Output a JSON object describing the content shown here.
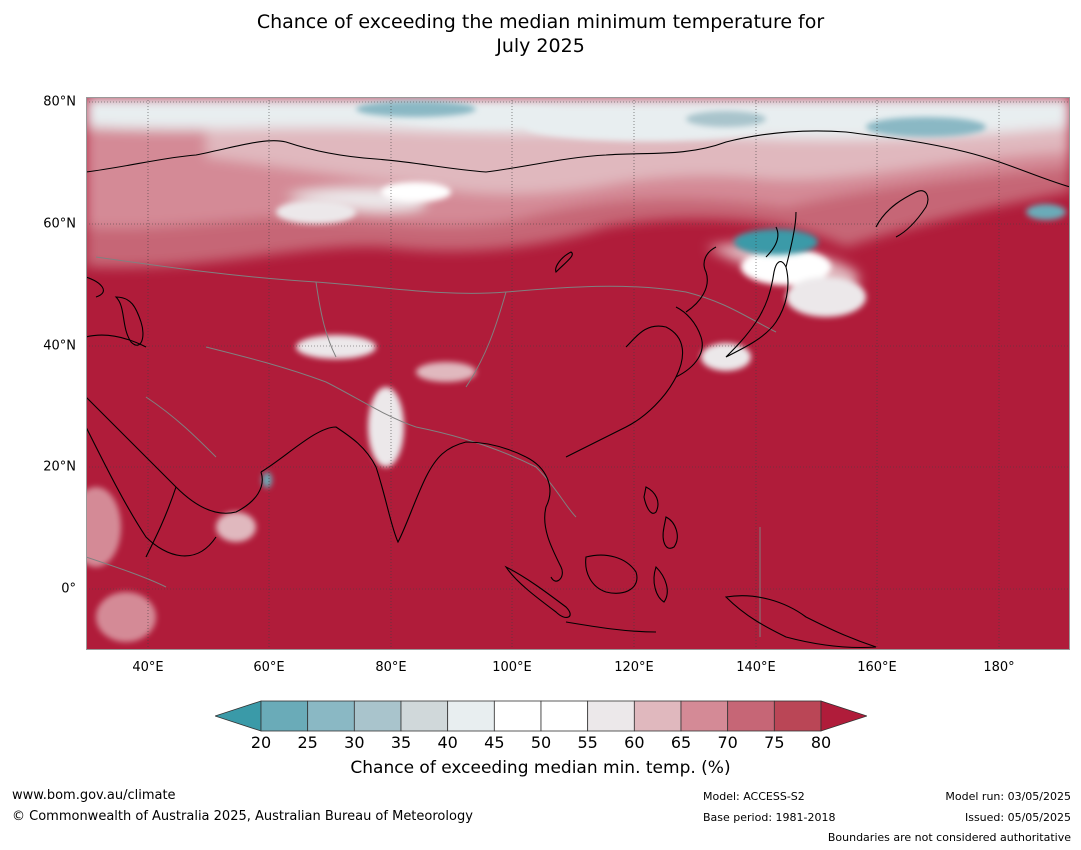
{
  "title": {
    "line1": "Chance of exceeding the median minimum temperature for",
    "line2": "July 2025"
  },
  "map": {
    "lat_labels": [
      "80°N",
      "60°N",
      "40°N",
      "20°N",
      "0°"
    ],
    "lon_labels": [
      "40°E",
      "60°E",
      "80°E",
      "100°E",
      "120°E",
      "140°E",
      "160°E",
      "180°"
    ],
    "colors": {
      "ocean_fill": "#b01c3a",
      "coastline": "#000000",
      "borders": "#808080",
      "gridlines": "#404040"
    }
  },
  "colorbar": {
    "title": "Chance of exceeding median min. temp. (%)",
    "ticks": [
      "20",
      "25",
      "30",
      "35",
      "40",
      "45",
      "50",
      "55",
      "60",
      "65",
      "70",
      "75",
      "80"
    ],
    "below_color": "#3a9aa8",
    "above_color": "#b01c3a",
    "bins": [
      {
        "range": "20-25",
        "color": "#6aabb8"
      },
      {
        "range": "25-30",
        "color": "#8ab8c4"
      },
      {
        "range": "30-35",
        "color": "#a9c4cc"
      },
      {
        "range": "35-40",
        "color": "#d0d8da"
      },
      {
        "range": "40-45",
        "color": "#e8eef0"
      },
      {
        "range": "45-50",
        "color": "#ffffff"
      },
      {
        "range": "50-55",
        "color": "#ffffff"
      },
      {
        "range": "55-60",
        "color": "#ece8ea"
      },
      {
        "range": "60-65",
        "color": "#e0b8be"
      },
      {
        "range": "65-70",
        "color": "#d48a96"
      },
      {
        "range": "70-75",
        "color": "#c66676"
      },
      {
        "range": "75-80",
        "color": "#ba4656"
      }
    ]
  },
  "footer": {
    "url": "www.bom.gov.au/climate",
    "copyright": "© Commonwealth of Australia 2025, Australian Bureau of Meteorology",
    "model": "Model: ACCESS-S2",
    "base_period": "Base period: 1981-2018",
    "model_run": "Model run: 03/05/2025",
    "issued": "Issued: 05/05/2025",
    "boundaries_note": "Boundaries are not considered authoritative"
  }
}
